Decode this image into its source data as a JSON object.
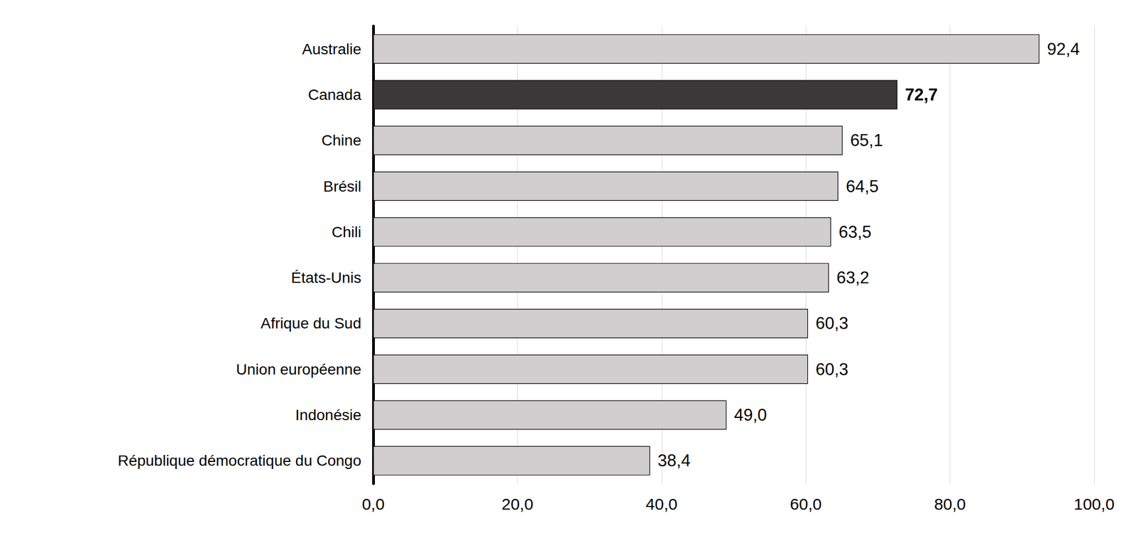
{
  "chart_data": {
    "type": "bar",
    "orientation": "horizontal",
    "categories": [
      "Australie",
      "Canada",
      "Chine",
      "Brésil",
      "Chili",
      "États-Unis",
      "Afrique du Sud",
      "Union européenne",
      "Indonésie",
      "République démocratique du Congo"
    ],
    "values": [
      92.4,
      72.7,
      65.1,
      64.5,
      63.5,
      63.2,
      60.3,
      60.3,
      49.0,
      38.4
    ],
    "value_labels": [
      "92,4",
      "72,7",
      "65,1",
      "64,5",
      "63,5",
      "63,2",
      "60,3",
      "60,3",
      "49,0",
      "38,4"
    ],
    "colors": [
      "#d0cece",
      "#3a3838",
      "#d0cece",
      "#d0cece",
      "#d0cece",
      "#d0cece",
      "#d0cece",
      "#d0cece",
      "#d0cece",
      "#d0cece"
    ],
    "xlim": [
      0,
      100
    ],
    "xticks": [
      {
        "value": 0,
        "label": "0,0"
      },
      {
        "value": 20,
        "label": "20,0"
      },
      {
        "value": 40,
        "label": "40,0"
      },
      {
        "value": 60,
        "label": "60,0"
      },
      {
        "value": 80,
        "label": "80,0"
      },
      {
        "value": 100,
        "label": "100,0"
      }
    ],
    "grid": true,
    "data_labels": true
  }
}
